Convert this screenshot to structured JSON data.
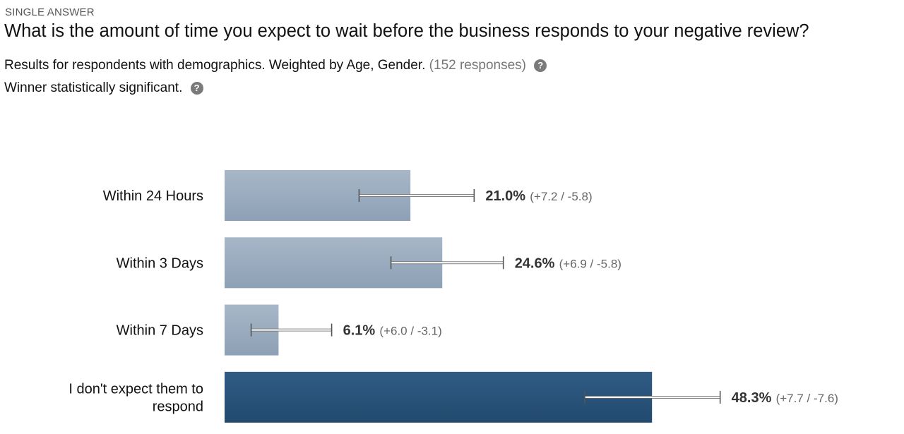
{
  "question": {
    "type_label": "SINGLE ANSWER",
    "title": "What is the amount of time you expect to wait before the business responds to your negative review?"
  },
  "meta": {
    "results_text": "Results for respondents with demographics. Weighted by Age, Gender.",
    "responses_text": "(152 responses)",
    "significance_text": "Winner statistically significant.",
    "help_icon": "question-circle-icon"
  },
  "colors": {
    "bar_default": "#9aacbf",
    "bar_winner": "#2b557c",
    "error_bar": "#555555"
  },
  "chart_data": {
    "type": "bar",
    "orientation": "horizontal",
    "categories": [
      [
        "Within 24 Hours"
      ],
      [
        "Within 3 Days"
      ],
      [
        "Within 7 Days"
      ],
      [
        "I don't expect them to",
        "respond"
      ]
    ],
    "values": [
      21.0,
      24.6,
      6.1,
      48.3
    ],
    "value_labels": [
      "21.0%",
      "24.6%",
      "6.1%",
      "48.3%"
    ],
    "error_plus": [
      7.2,
      6.9,
      6.0,
      7.7
    ],
    "error_minus": [
      5.8,
      5.8,
      3.1,
      7.6
    ],
    "error_labels": [
      "(+7.2 / -5.8)",
      "(+6.9 / -5.8)",
      "(+6.0 / -3.1)",
      "(+7.7 / -7.6)"
    ],
    "winner_index": 3,
    "xlim": [
      0,
      100
    ],
    "grid": false,
    "legend": "none"
  }
}
